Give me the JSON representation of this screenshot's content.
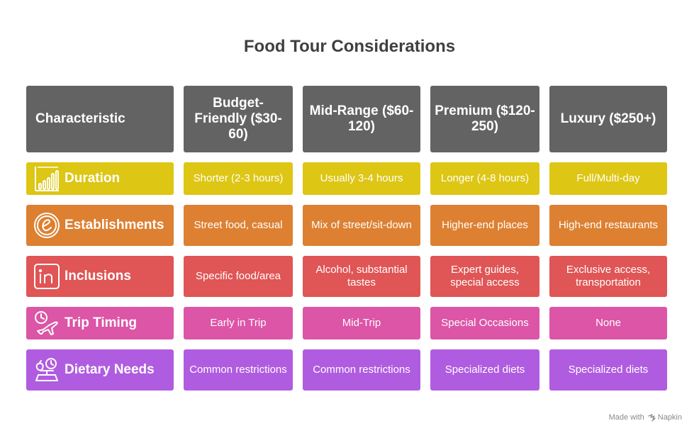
{
  "title": "Food Tour Considerations",
  "headers": [
    "Characteristic",
    "Budget-Friendly ($30-60)",
    "Mid-Range ($60-120)",
    "Premium ($120-250)",
    "Luxury ($250+)"
  ],
  "rows": [
    {
      "label": "Duration",
      "icon": "bar-chart-icon",
      "color": "#ddc614",
      "cells": [
        "Shorter (2-3 hours)",
        "Usually 3-4 hours",
        "Longer (4-8 hours)",
        "Full/Multi-day"
      ]
    },
    {
      "label": "Establishments",
      "icon": "e-letter-icon",
      "color": "#dd8031",
      "cells": [
        "Street food, casual",
        "Mix of street/sit-down",
        "Higher-end places",
        "High-end restaurants"
      ]
    },
    {
      "label": "Inclusions",
      "icon": "in-letters-icon",
      "color": "#e05555",
      "cells": [
        "Specific food/area",
        "Alcohol, substantial tastes",
        "Expert guides, special access",
        "Exclusive access, transportation"
      ]
    },
    {
      "label": "Trip Timing",
      "icon": "clock-airplane-icon",
      "color": "#dc55a6",
      "cells": [
        "Early in Trip",
        "Mid-Trip",
        "Special Occasions",
        "None"
      ]
    },
    {
      "label": "Dietary Needs",
      "icon": "scale-apple-icon",
      "color": "#b05ce0",
      "cells": [
        "Common restrictions",
        "Common restrictions",
        "Specialized diets",
        "Specialized diets"
      ]
    }
  ],
  "header_color": "#636363",
  "watermark": {
    "prefix": "Made with",
    "brand": "Napkin"
  }
}
